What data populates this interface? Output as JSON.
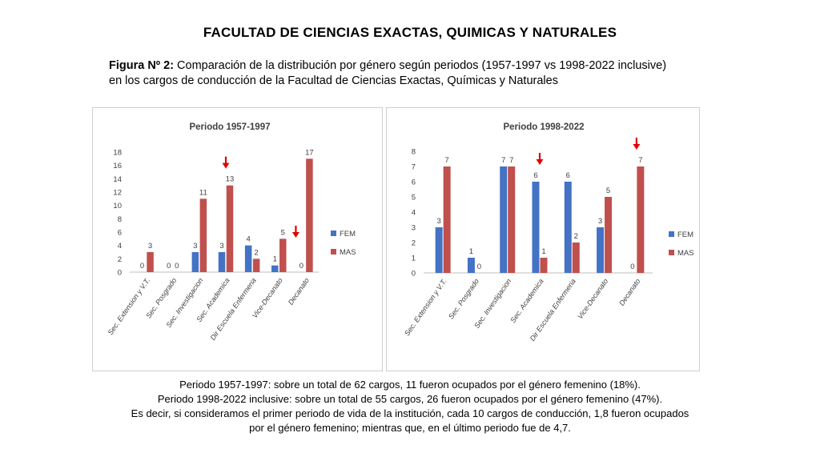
{
  "header": "FACULTAD DE CIENCIAS EXACTAS, QUIMICAS Y NATURALES",
  "caption": {
    "label": "Figura Nº 2:",
    "line1": " Comparación de la distribución por género según periodos (1957-1997 vs 1998-2022 inclusive)",
    "line2": "en los cargos de conducción de la Facultad de Ciencias Exactas, Químicas y Naturales"
  },
  "footer": {
    "line1": "Periodo 1957-1997: sobre un total de 62 cargos, 11 fueron ocupados por el género femenino (18%).",
    "line2": "Periodo 1998-2022 inclusive: sobre un total de 55 cargos, 26 fueron ocupados por el género femenino (47%).",
    "line3": "Es decir, si consideramos el primer periodo de vida de la institución, cada 10 cargos de conducción, 1,8 fueron ocupados",
    "line4": "por el género femenino; mientras que, en el último periodo fue de 4,7."
  },
  "colors": {
    "fem": "#4472C4",
    "mas": "#C0504D",
    "arrow": "#E00000"
  },
  "chart_data": [
    {
      "type": "bar",
      "title": "Periodo 1957-1997",
      "categories": [
        "Sec. Extension y V.T.",
        "Sec. Posgrado",
        "Sec. Investigacion",
        "Sec. Academica",
        "Dir Escuela Enfermeria",
        "Vice-Decanato",
        "Decanato"
      ],
      "series": [
        {
          "name": "FEM",
          "values": [
            0,
            0,
            3,
            3,
            4,
            1,
            0
          ]
        },
        {
          "name": "MAS",
          "values": [
            3,
            0,
            11,
            13,
            2,
            5,
            17
          ]
        }
      ],
      "ylim": [
        0,
        18
      ],
      "yticks": [
        0,
        2,
        4,
        6,
        8,
        10,
        12,
        14,
        16,
        18
      ],
      "legend": "right",
      "arrows": [
        {
          "category": "Sec. Academica"
        },
        {
          "category": "Decanato"
        }
      ]
    },
    {
      "type": "bar",
      "title": "Periodo 1998-2022",
      "categories": [
        "Sec. Extension y V.T.",
        "Sec. Posgrado",
        "Sec. Investigacion",
        "Sec. Academica",
        "Dir Escuela Enfermeria",
        "Vice-Decanato",
        "Decanato"
      ],
      "series": [
        {
          "name": "FEM",
          "values": [
            3,
            1,
            7,
            6,
            6,
            3,
            0
          ]
        },
        {
          "name": "MAS",
          "values": [
            7,
            0,
            7,
            1,
            2,
            5,
            7
          ]
        }
      ],
      "ylim": [
        0,
        8
      ],
      "yticks": [
        0,
        1,
        2,
        3,
        4,
        5,
        6,
        7,
        8
      ],
      "legend": "right",
      "arrows": [
        {
          "category": "Sec. Academica"
        },
        {
          "category": "Decanato"
        }
      ]
    }
  ]
}
